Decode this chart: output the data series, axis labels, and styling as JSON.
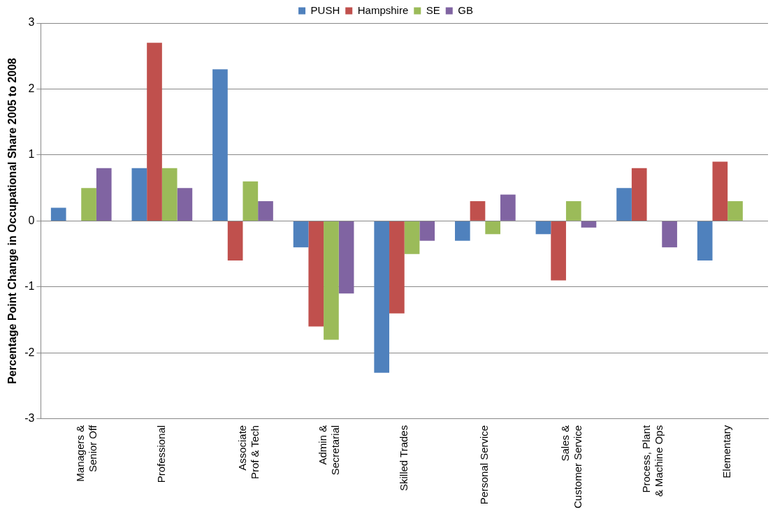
{
  "chart_data": {
    "type": "bar",
    "ylabel": "Percentage Point Change in Occupational Share 2005 to 2008",
    "categories": [
      "Managers &\nSenior Off",
      "Professional",
      "Associate\nProf & Tech",
      "Admin &\nSecretarial",
      "Skilled Trades",
      "Personal Service",
      "Sales &\nCustomer Service",
      "Process, Plant\n& Machine Ops",
      "Elementary"
    ],
    "series": [
      {
        "name": "PUSH",
        "color": "#4f81bd",
        "values": [
          0.2,
          0.8,
          2.3,
          -0.4,
          -2.3,
          -0.3,
          -0.2,
          0.5,
          -0.6
        ]
      },
      {
        "name": "Hampshire",
        "color": "#c0504d",
        "values": [
          0,
          2.7,
          -0.6,
          -1.6,
          -1.4,
          0.3,
          -0.9,
          0.8,
          0.9
        ]
      },
      {
        "name": "SE",
        "color": "#9bbb59",
        "values": [
          0.5,
          0.8,
          0.6,
          -1.8,
          -0.5,
          -0.2,
          0.3,
          0,
          0.3
        ]
      },
      {
        "name": "GB",
        "color": "#8064a2",
        "values": [
          0.8,
          0.5,
          0.3,
          -1.1,
          -0.3,
          0.4,
          -0.1,
          -0.4,
          0
        ]
      }
    ],
    "ylim": [
      -3,
      3
    ],
    "yticks": [
      -3,
      -2,
      -1,
      0,
      1,
      2,
      3
    ],
    "grid": "y",
    "legend": "top"
  }
}
